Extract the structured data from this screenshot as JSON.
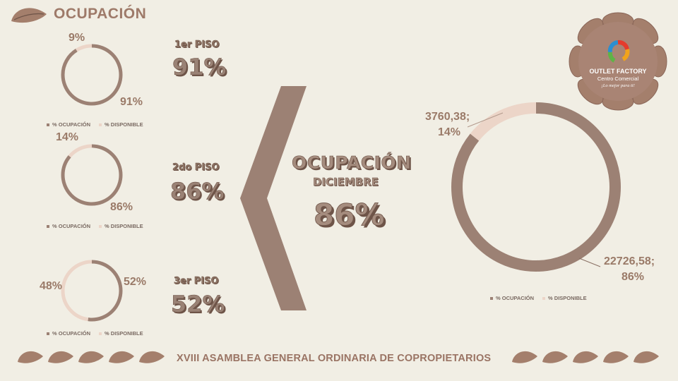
{
  "header": {
    "title": "OCUPACIÓN"
  },
  "footer": {
    "text": "XVIII ASAMBLEA GENERAL ORDINARIA DE COPROPIETARIOS"
  },
  "colors": {
    "occupied": "#9c8174",
    "available": "#ecd5c8",
    "background": "#f1eee4"
  },
  "legend": {
    "occupied": "% OCUPACIÓN",
    "available": "% DISPONIBLE"
  },
  "floors": [
    {
      "label": "1er PISO",
      "value": "91%",
      "occupied_label": "91%",
      "available_label": "9%"
    },
    {
      "label": "2do PISO",
      "value": "86%",
      "occupied_label": "86%",
      "available_label": "14%"
    },
    {
      "label": "3er PISO",
      "value": "52%",
      "occupied_label": "52%",
      "available_label": "48%"
    }
  ],
  "center": {
    "title": "OCUPACIÓN",
    "subtitle": "DICIEMBRE",
    "value": "86%"
  },
  "big_chart": {
    "occupied_label_1": "22726,58;",
    "occupied_label_2": "86%",
    "available_label_1": "3760,38;",
    "available_label_2": "14%"
  },
  "logo": {
    "line1": "OUTLET FACTORY",
    "line2": "Centro Comercial",
    "line3": "¡Lo mejor para ti!"
  },
  "chart_data": [
    {
      "type": "pie",
      "title": "1er PISO",
      "categories": [
        "% OCUPACIÓN",
        "% DISPONIBLE"
      ],
      "values": [
        91,
        9
      ]
    },
    {
      "type": "pie",
      "title": "2do PISO",
      "categories": [
        "% OCUPACIÓN",
        "% DISPONIBLE"
      ],
      "values": [
        86,
        14
      ]
    },
    {
      "type": "pie",
      "title": "3er PISO",
      "categories": [
        "% OCUPACIÓN",
        "% DISPONIBLE"
      ],
      "values": [
        52,
        48
      ]
    },
    {
      "type": "pie",
      "title": "DICIEMBRE",
      "categories": [
        "% OCUPACIÓN",
        "% DISPONIBLE"
      ],
      "values": [
        22726.58,
        3760.38
      ],
      "percent": [
        86,
        14
      ]
    }
  ]
}
